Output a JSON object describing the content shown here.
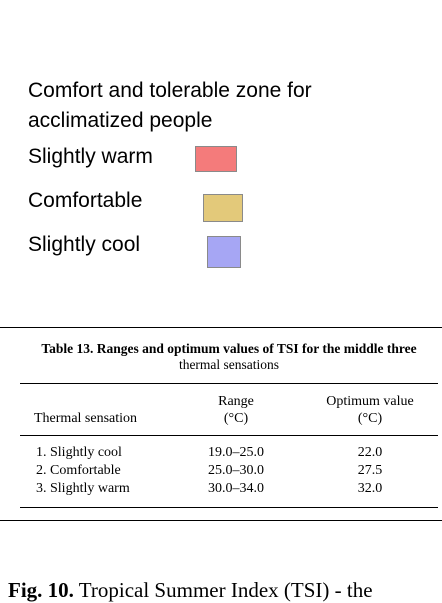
{
  "legend": {
    "title": "Comfort and tolerable zone for acclimatized people",
    "items": [
      {
        "label": "Slightly warm",
        "color": "#f47b7b"
      },
      {
        "label": "Comfortable",
        "color": "#e3c97a"
      },
      {
        "label": "Slightly cool",
        "color": "#a6a6f4"
      }
    ]
  },
  "table": {
    "caption_bold": "Table 13. Ranges and optimum values of TSI for the middle three",
    "caption_cont": "thermal sensations",
    "headers": {
      "sensation": "Thermal sensation",
      "range_l1": "Range",
      "range_l2": "(°C)",
      "opt_l1": "Optimum value",
      "opt_l2": "(°C)"
    },
    "rows": [
      {
        "sensation": "1. Slightly cool",
        "range": "19.0–25.0",
        "optimum": "22.0"
      },
      {
        "sensation": "2. Comfortable",
        "range": "25.0–30.0",
        "optimum": "27.5"
      },
      {
        "sensation": "3. Slightly warm",
        "range": "30.0–34.0",
        "optimum": "32.0"
      }
    ]
  },
  "figure_caption": {
    "label": "Fig. 10.",
    "text": " Tropical Summer Index (TSI) - the"
  }
}
